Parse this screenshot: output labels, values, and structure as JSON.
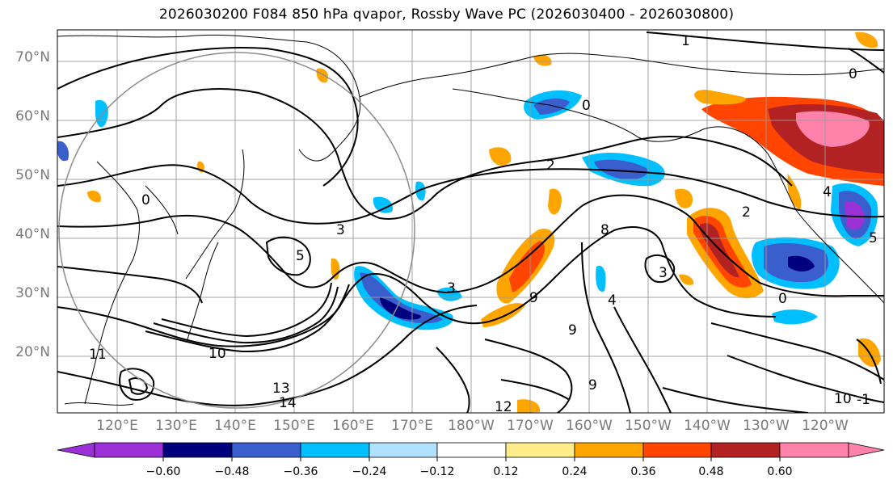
{
  "title": "2026030200 F084 850 hPa qvapor, Rossby Wave PC (2026030400 - 2026030800)",
  "map": {
    "lat_labels": [
      "70°N",
      "60°N",
      "50°N",
      "40°N",
      "30°N",
      "20°N"
    ],
    "lon_labels": [
      "120°E",
      "130°E",
      "140°E",
      "150°E",
      "160°E",
      "170°E",
      "180°W",
      "170°W",
      "160°W",
      "150°W",
      "140°W",
      "130°W",
      "120°W"
    ],
    "contour_labels": [
      "1",
      "2",
      "3",
      "4",
      "5",
      "8",
      "9",
      "10",
      "11",
      "12",
      "13",
      "14",
      "0",
      "-1"
    ]
  },
  "colorbar": {
    "ticks": [
      "−0.60",
      "−0.48",
      "−0.36",
      "−0.24",
      "−0.12",
      "0.12",
      "0.24",
      "0.36",
      "0.48",
      "0.60"
    ],
    "colors": [
      "#9b30d6",
      "#00007f",
      "#3a5fcd",
      "#00bfff",
      "#b0e2ff",
      "#ffffff",
      "#ffec8b",
      "#ffa500",
      "#ff4500",
      "#b22222",
      "#ff82ab"
    ]
  }
}
